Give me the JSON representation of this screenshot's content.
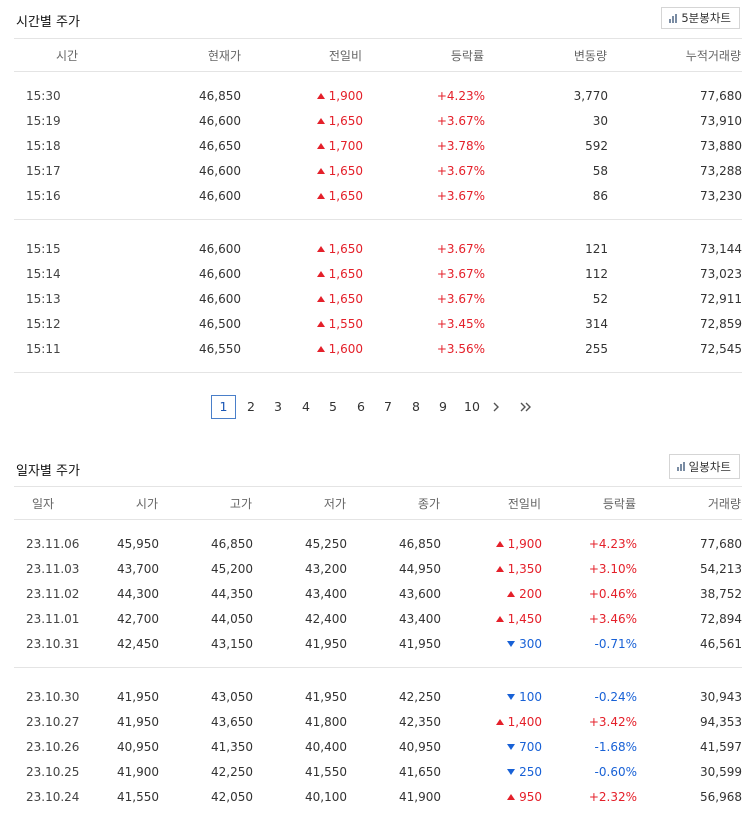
{
  "intraday": {
    "title": "시간별 주가",
    "chart_button": "5분봉차트",
    "columns": [
      "시간",
      "현재가",
      "전일비",
      "등락률",
      "변동량",
      "누적거래량"
    ],
    "groups": [
      [
        {
          "time": "15:30",
          "price": "46,850",
          "change": "1,900",
          "dir": "up",
          "rate": "+4.23%",
          "volume": "3,770",
          "cum": "77,680"
        },
        {
          "time": "15:19",
          "price": "46,600",
          "change": "1,650",
          "dir": "up",
          "rate": "+3.67%",
          "volume": "30",
          "cum": "73,910"
        },
        {
          "time": "15:18",
          "price": "46,650",
          "change": "1,700",
          "dir": "up",
          "rate": "+3.78%",
          "volume": "592",
          "cum": "73,880"
        },
        {
          "time": "15:17",
          "price": "46,600",
          "change": "1,650",
          "dir": "up",
          "rate": "+3.67%",
          "volume": "58",
          "cum": "73,288"
        },
        {
          "time": "15:16",
          "price": "46,600",
          "change": "1,650",
          "dir": "up",
          "rate": "+3.67%",
          "volume": "86",
          "cum": "73,230"
        }
      ],
      [
        {
          "time": "15:15",
          "price": "46,600",
          "change": "1,650",
          "dir": "up",
          "rate": "+3.67%",
          "volume": "121",
          "cum": "73,144"
        },
        {
          "time": "15:14",
          "price": "46,600",
          "change": "1,650",
          "dir": "up",
          "rate": "+3.67%",
          "volume": "112",
          "cum": "73,023"
        },
        {
          "time": "15:13",
          "price": "46,600",
          "change": "1,650",
          "dir": "up",
          "rate": "+3.67%",
          "volume": "52",
          "cum": "72,911"
        },
        {
          "time": "15:12",
          "price": "46,500",
          "change": "1,550",
          "dir": "up",
          "rate": "+3.45%",
          "volume": "314",
          "cum": "72,859"
        },
        {
          "time": "15:11",
          "price": "46,550",
          "change": "1,600",
          "dir": "up",
          "rate": "+3.56%",
          "volume": "255",
          "cum": "72,545"
        }
      ]
    ]
  },
  "pagination": {
    "current": "1",
    "pages": [
      "1",
      "2",
      "3",
      "4",
      "5",
      "6",
      "7",
      "8",
      "9",
      "10"
    ],
    "next_icon": "chevron-right-icon",
    "last_icon": "double-chevron-right-icon"
  },
  "daily": {
    "title": "일자별 주가",
    "chart_button": "일봉차트",
    "columns": [
      "일자",
      "시가",
      "고가",
      "저가",
      "종가",
      "전일비",
      "등락률",
      "거래량"
    ],
    "groups": [
      [
        {
          "date": "23.11.06",
          "open": "45,950",
          "high": "46,850",
          "low": "45,250",
          "close": "46,850",
          "change": "1,900",
          "dir": "up",
          "rate": "+4.23%",
          "volume": "77,680"
        },
        {
          "date": "23.11.03",
          "open": "43,700",
          "high": "45,200",
          "low": "43,200",
          "close": "44,950",
          "change": "1,350",
          "dir": "up",
          "rate": "+3.10%",
          "volume": "54,213"
        },
        {
          "date": "23.11.02",
          "open": "44,300",
          "high": "44,350",
          "low": "43,400",
          "close": "43,600",
          "change": "200",
          "dir": "up",
          "rate": "+0.46%",
          "volume": "38,752"
        },
        {
          "date": "23.11.01",
          "open": "42,700",
          "high": "44,050",
          "low": "42,400",
          "close": "43,400",
          "change": "1,450",
          "dir": "up",
          "rate": "+3.46%",
          "volume": "72,894"
        },
        {
          "date": "23.10.31",
          "open": "42,450",
          "high": "43,150",
          "low": "41,950",
          "close": "41,950",
          "change": "300",
          "dir": "down",
          "rate": "-0.71%",
          "volume": "46,561"
        }
      ],
      [
        {
          "date": "23.10.30",
          "open": "41,950",
          "high": "43,050",
          "low": "41,950",
          "close": "42,250",
          "change": "100",
          "dir": "down",
          "rate": "-0.24%",
          "volume": "30,943"
        },
        {
          "date": "23.10.27",
          "open": "41,950",
          "high": "43,650",
          "low": "41,800",
          "close": "42,350",
          "change": "1,400",
          "dir": "up",
          "rate": "+3.42%",
          "volume": "94,353"
        },
        {
          "date": "23.10.26",
          "open": "40,950",
          "high": "41,350",
          "low": "40,400",
          "close": "40,950",
          "change": "700",
          "dir": "down",
          "rate": "-1.68%",
          "volume": "41,597"
        },
        {
          "date": "23.10.25",
          "open": "41,900",
          "high": "42,250",
          "low": "41,550",
          "close": "41,650",
          "change": "250",
          "dir": "down",
          "rate": "-0.60%",
          "volume": "30,599"
        },
        {
          "date": "23.10.24",
          "open": "41,550",
          "high": "42,050",
          "low": "40,100",
          "close": "41,900",
          "change": "950",
          "dir": "up",
          "rate": "+2.32%",
          "volume": "56,968"
        }
      ]
    ]
  },
  "colors": {
    "up": "#e4202a",
    "down": "#1861d6",
    "accent": "#4a7fc9"
  }
}
